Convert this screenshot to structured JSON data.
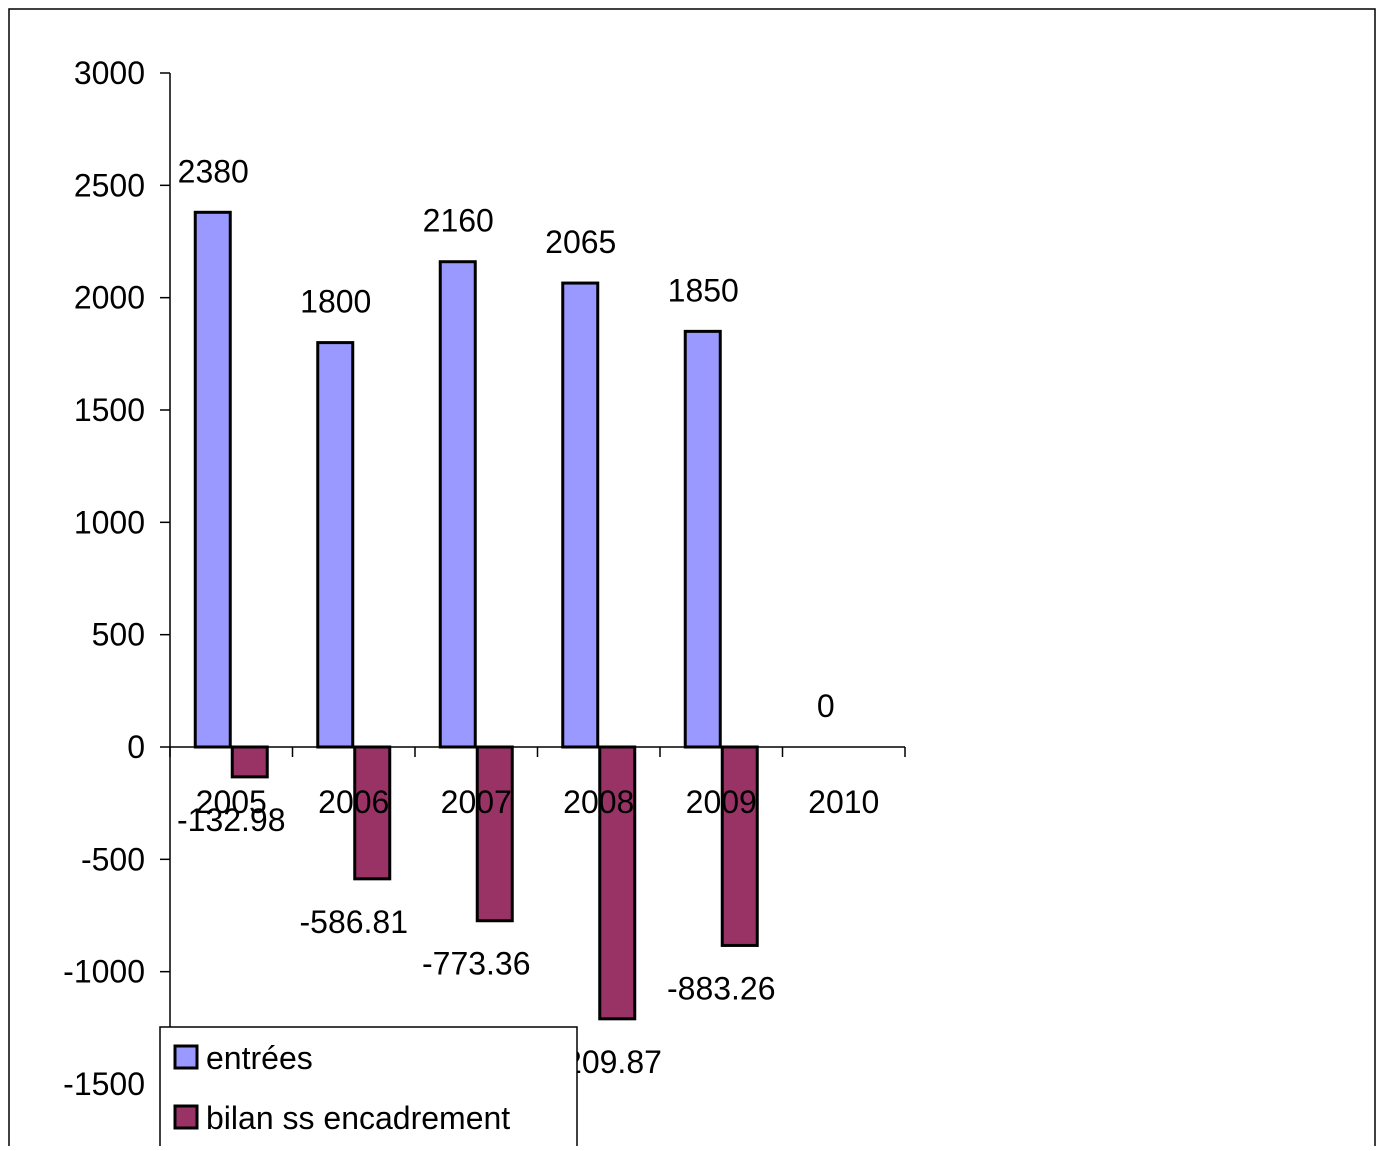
{
  "chart_data": {
    "type": "bar",
    "categories": [
      "2005",
      "2006",
      "2007",
      "2008",
      "2009",
      "2010"
    ],
    "series": [
      {
        "name": "entrées",
        "values": [
          2380,
          1800,
          2160,
          2065,
          1850,
          0
        ],
        "labels": [
          "2380",
          "1800",
          "2160",
          "2065",
          "1850",
          "0"
        ],
        "color": "#9999FF"
      },
      {
        "name": "bilan ss encadrement",
        "values": [
          -132.98,
          -586.81,
          -773.36,
          -1209.87,
          -883.26,
          null
        ],
        "labels": [
          "-132.98",
          "-586.81",
          "-773.36",
          "-1209.87",
          "-883.26",
          ""
        ],
        "color": "#993366"
      }
    ],
    "yticks": [
      "3000",
      "2500",
      "2000",
      "1500",
      "1000",
      "500",
      "0",
      "-500",
      "-1000",
      "-1500"
    ],
    "ylim": [
      -1500,
      3000
    ],
    "title": "",
    "xlabel": "",
    "ylabel": "",
    "grid": false,
    "legend_position": "bottom-left"
  }
}
